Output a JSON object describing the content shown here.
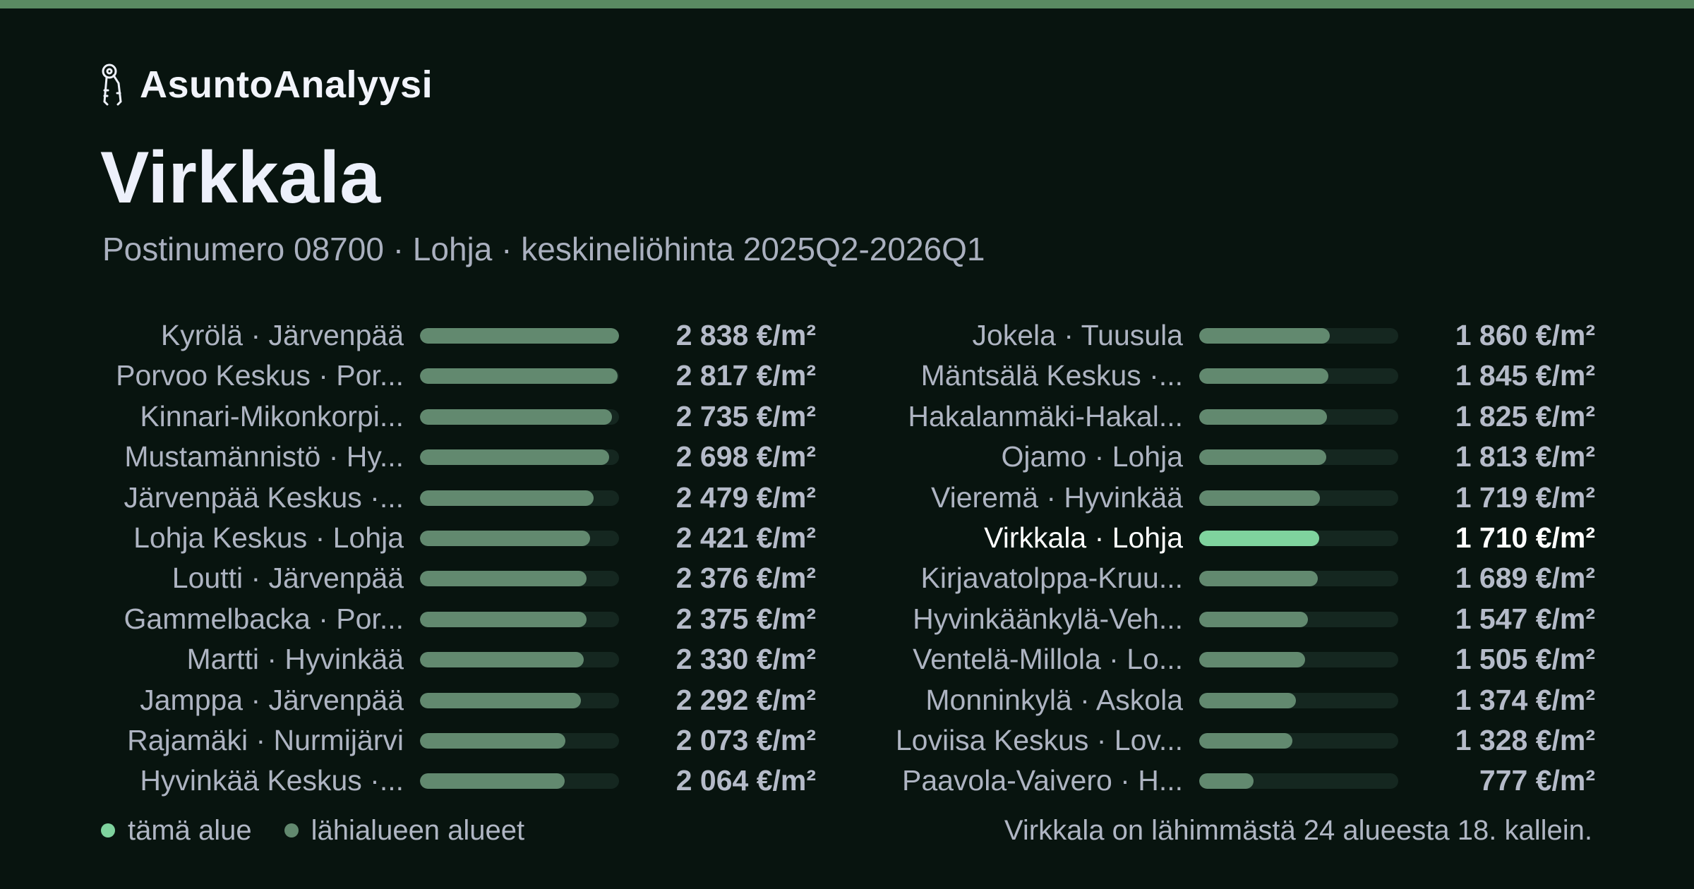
{
  "header": {
    "brand_icon": "keys-icon",
    "brand_name": "AsuntoAnalyysi",
    "title": "Virkkala",
    "subtitle": "Postinumero 08700 · Lohja · keskineliöhinta 2025Q2-2026Q1"
  },
  "colors": {
    "accent": "#7fd39e",
    "bar": "#62896f",
    "track": "#152720",
    "background": "#08140f",
    "top_bar": "#5a8a62"
  },
  "chart_data": {
    "type": "bar",
    "orientation": "horizontal",
    "unit": "€/m²",
    "xlim": [
      0,
      2838
    ],
    "highlight_index": 17,
    "categories": [
      "Kyrölä · Järvenpää",
      "Porvoo Keskus · Por...",
      "Kinnari-Mikonkorpi...",
      "Mustamännistö · Hy...",
      "Järvenpää Keskus ·...",
      "Lohja Keskus · Lohja",
      "Loutti · Järvenpää",
      "Gammelbacka · Por...",
      "Martti · Hyvinkää",
      "Jamppa · Järvenpää",
      "Rajamäki · Nurmijärvi",
      "Hyvinkää Keskus ·...",
      "Jokela · Tuusula",
      "Mäntsälä Keskus ·...",
      "Hakalanmäki-Hakal...",
      "Ojamo · Lohja",
      "Vieremä · Hyvinkää",
      "Virkkala · Lohja",
      "Kirjavatolppa-Kruu...",
      "Hyvinkäänkylä-Veh...",
      "Ventelä-Millola · Lo...",
      "Monninkylä · Askola",
      "Loviisa Keskus · Lov...",
      "Paavola-Vaivero · H..."
    ],
    "values": [
      2838,
      2817,
      2735,
      2698,
      2479,
      2421,
      2376,
      2375,
      2330,
      2292,
      2073,
      2064,
      1860,
      1845,
      1825,
      1813,
      1719,
      1710,
      1689,
      1547,
      1505,
      1374,
      1328,
      777
    ],
    "value_labels": [
      "2 838 €/m²",
      "2 817 €/m²",
      "2 735 €/m²",
      "2 698 €/m²",
      "2 479 €/m²",
      "2 421 €/m²",
      "2 376 €/m²",
      "2 375 €/m²",
      "2 330 €/m²",
      "2 292 €/m²",
      "2 073 €/m²",
      "2 064 €/m²",
      "1 860 €/m²",
      "1 845 €/m²",
      "1 825 €/m²",
      "1 813 €/m²",
      "1 719 €/m²",
      "1 710 €/m²",
      "1 689 €/m²",
      "1 547 €/m²",
      "1 505 €/m²",
      "1 374 €/m²",
      "1 328 €/m²",
      "777 €/m²"
    ]
  },
  "legend": {
    "this_area": "tämä alue",
    "nearby_areas": "lähialueen alueet"
  },
  "footnote": "Virkkala on lähimmästä 24 alueesta 18. kallein."
}
